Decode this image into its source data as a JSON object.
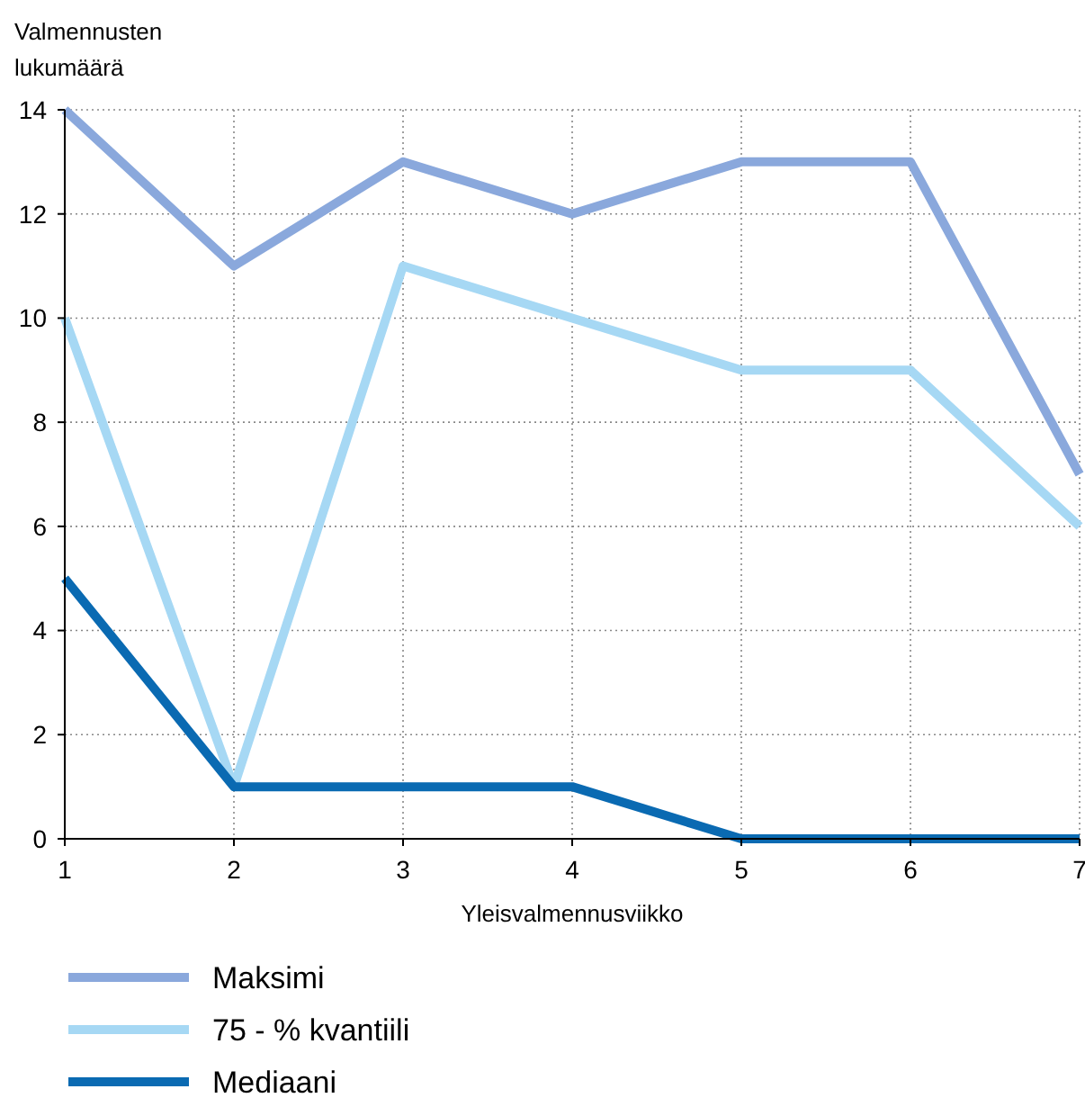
{
  "chart_data": {
    "type": "line",
    "xlabel": "Yleisvalmennusviikko",
    "ylabel": "Valmennusten\nlukumäärä",
    "x": [
      1,
      2,
      3,
      4,
      5,
      6,
      7
    ],
    "series": [
      {
        "name": "Maksimi",
        "color": "#8aa8dc",
        "values": [
          14,
          11,
          13,
          12,
          13,
          13,
          7
        ]
      },
      {
        "name": "75 - % kvantiili",
        "color": "#a6d8f4",
        "values": [
          10,
          1,
          11,
          10,
          9,
          9,
          6
        ]
      },
      {
        "name": "Mediaani",
        "color": "#0a6ab2",
        "values": [
          5,
          1,
          1,
          1,
          0,
          0,
          0
        ]
      }
    ],
    "xlim": [
      1,
      7
    ],
    "xticks": [
      1,
      2,
      3,
      4,
      5,
      6,
      7
    ],
    "ylim": [
      0,
      14
    ],
    "yticks": [
      0,
      2,
      4,
      6,
      8,
      10,
      12,
      14
    ],
    "grid": true,
    "legend": "bottom",
    "marker": "none",
    "line_style": "solid"
  }
}
